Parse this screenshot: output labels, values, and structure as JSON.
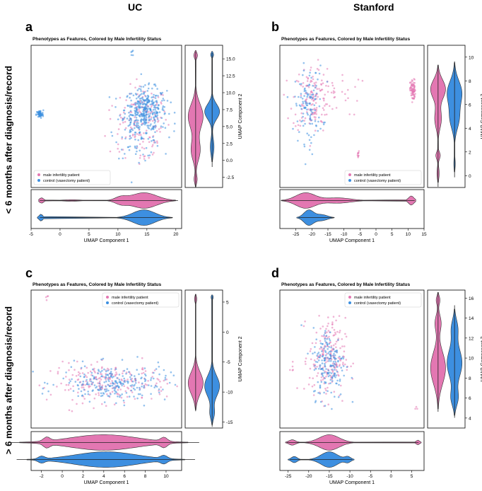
{
  "headers": {
    "left": "UC",
    "right": "Stanford"
  },
  "row_labels": {
    "top": "< 6 months after diagnosis/record",
    "bottom": "> 6 months after diagnosis/record"
  },
  "colors": {
    "male": "#e377b2",
    "control": "#3d8fe0",
    "frame": "#000000",
    "line": "#333333"
  },
  "chart_data": [
    {
      "id": "a",
      "panel_label": "a",
      "type": "scatter",
      "title": "Phenotypes as Features, Colored by Male Infertility Status",
      "xlabel": "UMAP Component 1",
      "ylabel": "UMAP Component 2",
      "xlim": [
        -5,
        21
      ],
      "ylim": [
        -4,
        17
      ],
      "xticks": [
        "-5",
        "0",
        "5",
        "10",
        "15",
        "20"
      ],
      "yticks": [
        "-2.5",
        "0.0",
        "2.5",
        "5.0",
        "7.5",
        "10.0",
        "12.5",
        "15.0"
      ],
      "legend": [
        "male infertility patient",
        "control (vasectomy patient)"
      ],
      "legend_position": "bottom-left",
      "series": [
        {
          "name": "male infertility patient",
          "color": "male",
          "clusters": [
            {
              "x": 14.5,
              "y": 6.5,
              "sx": 2.0,
              "sy": 2.2,
              "n": 120
            },
            {
              "x": 13.5,
              "y": 2.0,
              "sx": 2.5,
              "sy": 1.5,
              "n": 25
            },
            {
              "x": 10.5,
              "y": 5.0,
              "sx": 2.0,
              "sy": 3.0,
              "n": 12
            }
          ],
          "violin_x": [
            {
              "c": -3.2,
              "s": 0.35,
              "w": 0.35
            },
            {
              "c": 2.0,
              "s": 1.5,
              "w": 0.1
            },
            {
              "c": 10.5,
              "s": 1.0,
              "w": 0.4
            },
            {
              "c": 14.5,
              "s": 2.2,
              "w": 1.0
            }
          ],
          "violin_y": [
            {
              "c": -2.8,
              "s": 0.6,
              "w": 0.2
            },
            {
              "c": 1.5,
              "s": 1.5,
              "w": 0.6
            },
            {
              "c": 6.5,
              "s": 1.8,
              "w": 1.0
            },
            {
              "c": 15.5,
              "s": 0.4,
              "w": 0.25
            }
          ]
        },
        {
          "name": "control (vasectomy patient)",
          "color": "control",
          "clusters": [
            {
              "x": 14.8,
              "y": 7.5,
              "sx": 1.8,
              "sy": 1.6,
              "n": 320
            },
            {
              "x": 13.5,
              "y": 4.0,
              "sx": 2.0,
              "sy": 1.8,
              "n": 90
            },
            {
              "x": -3.5,
              "y": 6.8,
              "sx": 0.3,
              "sy": 0.3,
              "n": 60
            },
            {
              "x": 12.5,
              "y": 15.8,
              "sx": 0.2,
              "sy": 0.3,
              "n": 5
            }
          ],
          "violin_x": [
            {
              "c": -3.3,
              "s": 0.3,
              "w": 0.45
            },
            {
              "c": 14.5,
              "s": 1.9,
              "w": 1.0
            }
          ],
          "violin_y": [
            {
              "c": 2.0,
              "s": 1.2,
              "w": 0.25
            },
            {
              "c": 7.2,
              "s": 1.1,
              "w": 1.0
            },
            {
              "c": 15.6,
              "s": 0.3,
              "w": 0.2
            }
          ]
        }
      ]
    },
    {
      "id": "b",
      "panel_label": "b",
      "type": "scatter",
      "title": "Phenotypes as Features, Colored by Male Infertility Status",
      "xlabel": "UMAP Component 1",
      "ylabel": "UMAP Component 2",
      "xlim": [
        -30,
        15
      ],
      "ylim": [
        -1,
        11
      ],
      "xticks": [
        "-25",
        "-20",
        "-15",
        "-10",
        "-5",
        "0",
        "5",
        "10",
        "15"
      ],
      "yticks": [
        "0",
        "2",
        "4",
        "6",
        "8",
        "10"
      ],
      "legend": [
        "male infertility patient",
        "control (vasectomy patient)"
      ],
      "legend_position": "bottom-right",
      "series": [
        {
          "name": "male infertility patient",
          "color": "male",
          "clusters": [
            {
              "x": -20,
              "y": 6.5,
              "sx": 3.0,
              "sy": 1.4,
              "n": 140
            },
            {
              "x": -12,
              "y": 7.0,
              "sx": 3.5,
              "sy": 1.0,
              "n": 25
            },
            {
              "x": 11.5,
              "y": 7.2,
              "sx": 0.4,
              "sy": 0.45,
              "n": 80
            },
            {
              "x": -5.5,
              "y": 1.7,
              "sx": 0.2,
              "sy": 0.2,
              "n": 10
            }
          ],
          "violin_x": [
            {
              "c": -22,
              "s": 3.0,
              "w": 1.0
            },
            {
              "c": -12,
              "s": 4.0,
              "w": 0.35
            },
            {
              "c": 11.0,
              "s": 0.8,
              "w": 0.6
            }
          ],
          "violin_y": [
            {
              "c": 7.3,
              "s": 0.8,
              "w": 1.0
            },
            {
              "c": 4.8,
              "s": 0.8,
              "w": 0.45
            },
            {
              "c": 1.7,
              "s": 0.3,
              "w": 0.3
            },
            {
              "c": 0.2,
              "s": 0.5,
              "w": 0.15
            }
          ]
        },
        {
          "name": "control (vasectomy patient)",
          "color": "control",
          "clusters": [
            {
              "x": -21,
              "y": 6.0,
              "sx": 2.2,
              "sy": 1.6,
              "n": 120
            }
          ],
          "violin_x": [
            {
              "c": -21,
              "s": 1.5,
              "w": 1.0
            },
            {
              "c": -17,
              "s": 1.8,
              "w": 0.4
            }
          ],
          "violin_y": [
            {
              "c": 7.0,
              "s": 1.0,
              "w": 1.0
            },
            {
              "c": 4.8,
              "s": 0.9,
              "w": 0.6
            },
            {
              "c": 1.0,
              "s": 0.5,
              "w": 0.1
            }
          ]
        }
      ]
    },
    {
      "id": "c",
      "panel_label": "c",
      "type": "scatter",
      "title": "Phenotypes as Features, Colored by Male Infertility Status",
      "xlabel": "UMAP Component 1",
      "ylabel": "UMAP Component 2",
      "xlim": [
        -3,
        11.5
      ],
      "ylim": [
        -16,
        7
      ],
      "xticks": [
        "-2",
        "0",
        "2",
        "4",
        "6",
        "8",
        "10"
      ],
      "yticks": [
        "-15",
        "-10",
        "-5",
        "0",
        "5"
      ],
      "legend": [
        "male infertility patient",
        "control (vasectomy patient)"
      ],
      "legend_position": "top-right",
      "series": [
        {
          "name": "male infertility patient",
          "color": "male",
          "clusters": [
            {
              "x": 4.5,
              "y": -8.5,
              "sx": 2.8,
              "sy": 1.6,
              "n": 220
            },
            {
              "x": -1.5,
              "y": 5.8,
              "sx": 0.15,
              "sy": 0.2,
              "n": 4
            }
          ],
          "violin_x": [
            {
              "c": 4.0,
              "s": 3.2,
              "w": 1.0
            },
            {
              "c": 9.8,
              "s": 0.3,
              "w": 0.5
            },
            {
              "c": -1.5,
              "s": 0.3,
              "w": 0.5
            }
          ],
          "violin_y": [
            {
              "c": -8.5,
              "s": 1.8,
              "w": 1.0
            },
            {
              "c": 5.5,
              "s": 0.5,
              "w": 0.15
            }
          ]
        },
        {
          "name": "control (vasectomy patient)",
          "color": "control",
          "clusters": [
            {
              "x": 5.0,
              "y": -8.5,
              "sx": 2.6,
              "sy": 1.5,
              "n": 240
            }
          ],
          "violin_x": [
            {
              "c": 4.2,
              "s": 3.0,
              "w": 1.0
            },
            {
              "c": 9.8,
              "s": 0.3,
              "w": 0.4
            },
            {
              "c": -2.0,
              "s": 0.3,
              "w": 0.35
            }
          ],
          "violin_y": [
            {
              "c": -9.0,
              "s": 1.7,
              "w": 1.0
            },
            {
              "c": -13.5,
              "s": 1.0,
              "w": 0.3
            },
            {
              "c": 5.8,
              "s": 0.3,
              "w": 0.15
            }
          ]
        }
      ]
    },
    {
      "id": "d",
      "panel_label": "d",
      "type": "scatter",
      "title": "Phenotypes as Features, Colored by Male Infertility Status",
      "xlabel": "UMAP Component 1",
      "ylabel": "UMAP Component 2",
      "xlim": [
        -27,
        8
      ],
      "ylim": [
        3,
        16.8
      ],
      "xticks": [
        "-25",
        "-20",
        "-15",
        "-10",
        "-5",
        "0",
        "5"
      ],
      "yticks": [
        "4",
        "6",
        "8",
        "10",
        "12",
        "14",
        "16"
      ],
      "legend": [
        "male infertility patient",
        "control (vasectomy patient)"
      ],
      "legend_position": "top-right",
      "series": [
        {
          "name": "male infertility patient",
          "color": "male",
          "clusters": [
            {
              "x": -15.5,
              "y": 10.0,
              "sx": 2.2,
              "sy": 2.0,
              "n": 200
            },
            {
              "x": -24,
              "y": 9.0,
              "sx": 0.3,
              "sy": 0.3,
              "n": 5
            },
            {
              "x": 6.0,
              "y": 5.0,
              "sx": 0.2,
              "sy": 0.2,
              "n": 3
            }
          ],
          "violin_x": [
            {
              "c": -15,
              "s": 2.4,
              "w": 1.0
            },
            {
              "c": -24,
              "s": 0.8,
              "w": 0.35
            },
            {
              "c": 6.5,
              "s": 0.4,
              "w": 0.3
            }
          ],
          "violin_y": [
            {
              "c": 9.0,
              "s": 1.6,
              "w": 1.0
            },
            {
              "c": 13.5,
              "s": 0.8,
              "w": 0.4
            },
            {
              "c": 15.8,
              "s": 0.4,
              "w": 0.25
            }
          ]
        },
        {
          "name": "control (vasectomy patient)",
          "color": "control",
          "clusters": [
            {
              "x": -15.0,
              "y": 9.5,
              "sx": 2.0,
              "sy": 1.8,
              "n": 180
            }
          ],
          "violin_x": [
            {
              "c": -15,
              "s": 2.0,
              "w": 1.0
            },
            {
              "c": -23.5,
              "s": 0.7,
              "w": 0.4
            },
            {
              "c": -10.5,
              "s": 0.7,
              "w": 0.35
            }
          ],
          "violin_y": [
            {
              "c": 9.5,
              "s": 1.5,
              "w": 1.0
            },
            {
              "c": 13.0,
              "s": 0.9,
              "w": 0.4
            },
            {
              "c": 6.0,
              "s": 0.8,
              "w": 0.45
            }
          ]
        }
      ]
    }
  ]
}
